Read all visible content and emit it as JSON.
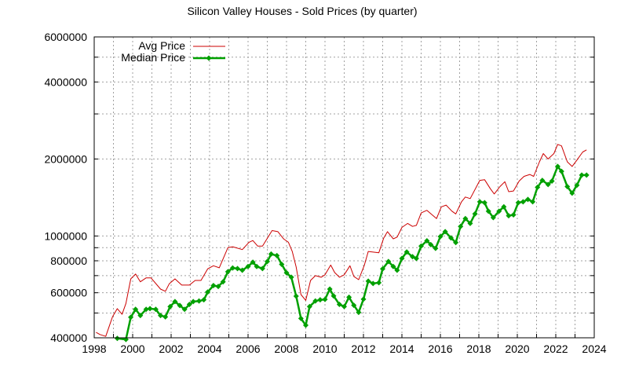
{
  "chart_data": {
    "type": "line",
    "title": "Silicon Valley Houses - Sold Prices (by quarter)",
    "xlabel": "",
    "ylabel": "",
    "xlim": [
      1998,
      2024
    ],
    "ylim": [
      400000,
      6000000
    ],
    "y_scale": "log",
    "grid": true,
    "legend_position": "top-left",
    "x_tick_labels": [
      "1998",
      "2000",
      "2002",
      "2004",
      "2006",
      "2008",
      "2010",
      "2012",
      "2014",
      "2016",
      "2018",
      "2020",
      "2022",
      "2024"
    ],
    "y_tick_labels": [
      "400000",
      "600000",
      "800000",
      "1000000",
      "2000000",
      "4000000",
      "6000000"
    ],
    "series": [
      {
        "name": "Avg Price",
        "color": "#cc0000",
        "marker": "none",
        "points": [
          [
            1998.1,
            420000
          ],
          [
            1998.3,
            412000
          ],
          [
            1998.6,
            405000
          ],
          [
            1998.95,
            483000
          ],
          [
            1999.2,
            520000
          ],
          [
            1999.45,
            494000
          ],
          [
            1999.65,
            545000
          ],
          [
            1999.9,
            680000
          ],
          [
            2000.15,
            710000
          ],
          [
            2000.4,
            662000
          ],
          [
            2000.7,
            686000
          ],
          [
            2000.95,
            686000
          ],
          [
            2001.45,
            620000
          ],
          [
            2001.7,
            608000
          ],
          [
            2001.9,
            650000
          ],
          [
            2002.2,
            680000
          ],
          [
            2002.55,
            643000
          ],
          [
            2002.95,
            643000
          ],
          [
            2003.25,
            670000
          ],
          [
            2003.55,
            670000
          ],
          [
            2003.9,
            744000
          ],
          [
            2004.2,
            765000
          ],
          [
            2004.5,
            751000
          ],
          [
            2004.95,
            900000
          ],
          [
            2005.2,
            908000
          ],
          [
            2005.7,
            885000
          ],
          [
            2006.05,
            945000
          ],
          [
            2006.25,
            960000
          ],
          [
            2006.5,
            913000
          ],
          [
            2006.75,
            913000
          ],
          [
            2007.25,
            1050000
          ],
          [
            2007.55,
            1040000
          ],
          [
            2007.85,
            974000
          ],
          [
            2008.1,
            945000
          ],
          [
            2008.3,
            870000
          ],
          [
            2008.5,
            756000
          ],
          [
            2008.75,
            590000
          ],
          [
            2009.0,
            560000
          ],
          [
            2009.25,
            670000
          ],
          [
            2009.5,
            700000
          ],
          [
            2009.8,
            690000
          ],
          [
            2010.0,
            705000
          ],
          [
            2010.3,
            770000
          ],
          [
            2010.5,
            720000
          ],
          [
            2010.75,
            690000
          ],
          [
            2011.0,
            705000
          ],
          [
            2011.3,
            765000
          ],
          [
            2011.5,
            695000
          ],
          [
            2011.75,
            675000
          ],
          [
            2012.05,
            770000
          ],
          [
            2012.25,
            870000
          ],
          [
            2012.8,
            860000
          ],
          [
            2013.05,
            980000
          ],
          [
            2013.25,
            1040000
          ],
          [
            2013.55,
            975000
          ],
          [
            2013.75,
            990000
          ],
          [
            2014.0,
            1080000
          ],
          [
            2014.3,
            1120000
          ],
          [
            2014.55,
            1090000
          ],
          [
            2014.75,
            1100000
          ],
          [
            2015.0,
            1230000
          ],
          [
            2015.3,
            1260000
          ],
          [
            2015.8,
            1170000
          ],
          [
            2016.05,
            1300000
          ],
          [
            2016.3,
            1320000
          ],
          [
            2016.6,
            1250000
          ],
          [
            2016.8,
            1220000
          ],
          [
            2017.1,
            1360000
          ],
          [
            2017.3,
            1420000
          ],
          [
            2017.55,
            1400000
          ],
          [
            2018.05,
            1650000
          ],
          [
            2018.3,
            1660000
          ],
          [
            2018.6,
            1530000
          ],
          [
            2018.8,
            1460000
          ],
          [
            2019.1,
            1560000
          ],
          [
            2019.35,
            1630000
          ],
          [
            2019.55,
            1490000
          ],
          [
            2019.8,
            1500000
          ],
          [
            2020.1,
            1640000
          ],
          [
            2020.35,
            1710000
          ],
          [
            2020.65,
            1740000
          ],
          [
            2020.85,
            1710000
          ],
          [
            2021.15,
            1950000
          ],
          [
            2021.35,
            2100000
          ],
          [
            2021.6,
            2000000
          ],
          [
            2021.9,
            2100000
          ],
          [
            2022.1,
            2280000
          ],
          [
            2022.3,
            2250000
          ],
          [
            2022.6,
            1950000
          ],
          [
            2022.85,
            1870000
          ],
          [
            2023.1,
            1980000
          ],
          [
            2023.4,
            2130000
          ],
          [
            2023.6,
            2170000
          ]
        ]
      },
      {
        "name": "Median Price",
        "color": "#00a000",
        "marker": "diamond",
        "points": [
          [
            1999.2,
            398000
          ],
          [
            1999.65,
            394000
          ],
          [
            1999.9,
            481000
          ],
          [
            2000.15,
            517000
          ],
          [
            2000.4,
            489000
          ],
          [
            2000.7,
            517000
          ],
          [
            2000.9,
            520000
          ],
          [
            2001.2,
            517000
          ],
          [
            2001.45,
            489000
          ],
          [
            2001.7,
            483000
          ],
          [
            2001.95,
            530000
          ],
          [
            2002.2,
            554000
          ],
          [
            2002.45,
            535000
          ],
          [
            2002.7,
            517000
          ],
          [
            2002.95,
            540000
          ],
          [
            2003.15,
            554000
          ],
          [
            2003.45,
            557000
          ],
          [
            2003.7,
            563000
          ],
          [
            2003.9,
            604000
          ],
          [
            2004.2,
            640000
          ],
          [
            2004.45,
            635000
          ],
          [
            2004.7,
            662000
          ],
          [
            2004.95,
            725000
          ],
          [
            2005.2,
            750000
          ],
          [
            2005.45,
            746000
          ],
          [
            2005.7,
            735000
          ],
          [
            2006.0,
            760000
          ],
          [
            2006.25,
            790000
          ],
          [
            2006.45,
            760000
          ],
          [
            2006.75,
            746000
          ],
          [
            2007.0,
            795000
          ],
          [
            2007.2,
            850000
          ],
          [
            2007.5,
            838000
          ],
          [
            2007.75,
            775000
          ],
          [
            2008.0,
            718000
          ],
          [
            2008.25,
            690000
          ],
          [
            2008.5,
            582000
          ],
          [
            2008.75,
            476000
          ],
          [
            2009.0,
            448000
          ],
          [
            2009.2,
            530000
          ],
          [
            2009.5,
            557000
          ],
          [
            2009.75,
            563000
          ],
          [
            2010.0,
            565000
          ],
          [
            2010.25,
            620000
          ],
          [
            2010.45,
            583000
          ],
          [
            2010.75,
            540000
          ],
          [
            2011.0,
            530000
          ],
          [
            2011.25,
            576000
          ],
          [
            2011.5,
            536000
          ],
          [
            2011.75,
            503000
          ],
          [
            2012.0,
            566000
          ],
          [
            2012.25,
            666000
          ],
          [
            2012.5,
            652000
          ],
          [
            2012.8,
            657000
          ],
          [
            2013.0,
            744000
          ],
          [
            2013.3,
            795000
          ],
          [
            2013.55,
            760000
          ],
          [
            2013.75,
            735000
          ],
          [
            2014.0,
            817000
          ],
          [
            2014.25,
            866000
          ],
          [
            2014.55,
            830000
          ],
          [
            2014.75,
            817000
          ],
          [
            2015.0,
            913000
          ],
          [
            2015.3,
            958000
          ],
          [
            2015.5,
            925000
          ],
          [
            2015.75,
            895000
          ],
          [
            2016.0,
            995000
          ],
          [
            2016.25,
            1040000
          ],
          [
            2016.55,
            983000
          ],
          [
            2016.8,
            943000
          ],
          [
            2017.05,
            1090000
          ],
          [
            2017.3,
            1170000
          ],
          [
            2017.55,
            1120000
          ],
          [
            2017.8,
            1220000
          ],
          [
            2018.05,
            1360000
          ],
          [
            2018.3,
            1350000
          ],
          [
            2018.5,
            1250000
          ],
          [
            2018.75,
            1180000
          ],
          [
            2019.05,
            1250000
          ],
          [
            2019.3,
            1300000
          ],
          [
            2019.55,
            1200000
          ],
          [
            2019.8,
            1210000
          ],
          [
            2020.05,
            1350000
          ],
          [
            2020.3,
            1360000
          ],
          [
            2020.55,
            1390000
          ],
          [
            2020.8,
            1360000
          ],
          [
            2021.05,
            1550000
          ],
          [
            2021.3,
            1650000
          ],
          [
            2021.6,
            1590000
          ],
          [
            2021.8,
            1640000
          ],
          [
            2022.1,
            1870000
          ],
          [
            2022.3,
            1790000
          ],
          [
            2022.6,
            1560000
          ],
          [
            2022.85,
            1470000
          ],
          [
            2023.1,
            1580000
          ],
          [
            2023.35,
            1730000
          ],
          [
            2023.6,
            1730000
          ]
        ]
      }
    ]
  }
}
